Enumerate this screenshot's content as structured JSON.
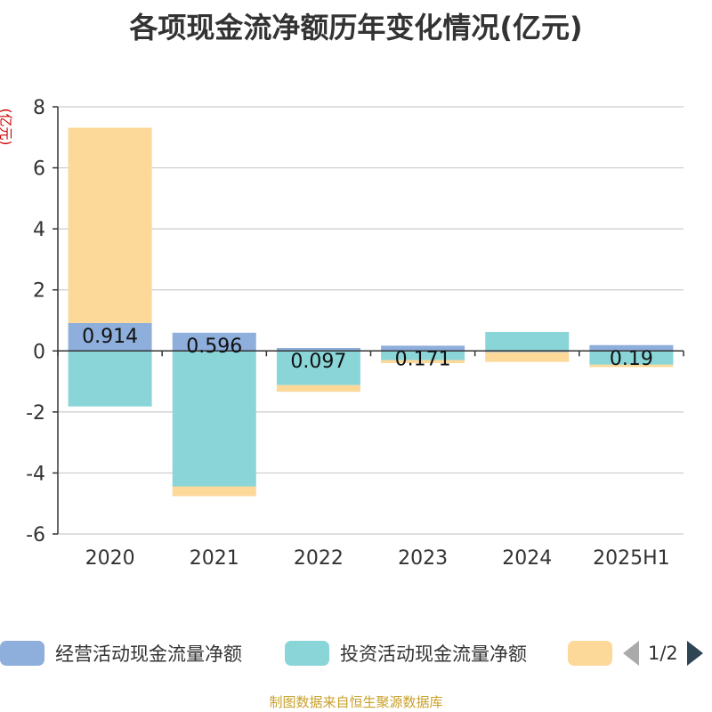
{
  "title": "各项现金流净额历年变化情况(亿元)",
  "unit_label": "(亿元)",
  "source": "制图数据来自恒生聚源数据库",
  "legend": {
    "items": [
      {
        "label": "经营活动现金流量净额",
        "color": "#8eaedb"
      },
      {
        "label": "投资活动现金流量净额",
        "color": "#89d5d8"
      },
      {
        "label": "",
        "color": "#fcd899"
      }
    ],
    "page": "1/2"
  },
  "chart_data": {
    "type": "bar",
    "stacked": true,
    "categories": [
      "2020",
      "2021",
      "2022",
      "2023",
      "2024",
      "2025H1"
    ],
    "ylim": [
      -6,
      8
    ],
    "yticks": [
      "-6",
      "-4",
      "-2",
      "0",
      "2",
      "4",
      "6",
      "8"
    ],
    "grid": true,
    "legend_position": "bottom",
    "series": [
      {
        "name": "经营活动现金流量净额",
        "color": "#8eaedb",
        "values": [
          0.914,
          0.596,
          0.097,
          0.171,
          -0.04,
          0.19
        ],
        "labels": [
          "0.914",
          "0.596",
          "0.097",
          "0.171",
          "",
          "0.19"
        ]
      },
      {
        "name": "投资活动现金流量净额",
        "color": "#89d5d8",
        "values": [
          -1.82,
          -4.44,
          -1.12,
          -0.3,
          0.62,
          -0.45
        ]
      },
      {
        "name": "",
        "color": "#fcd899",
        "values": [
          6.4,
          -0.32,
          -0.22,
          -0.1,
          -0.32,
          -0.08
        ]
      }
    ]
  }
}
